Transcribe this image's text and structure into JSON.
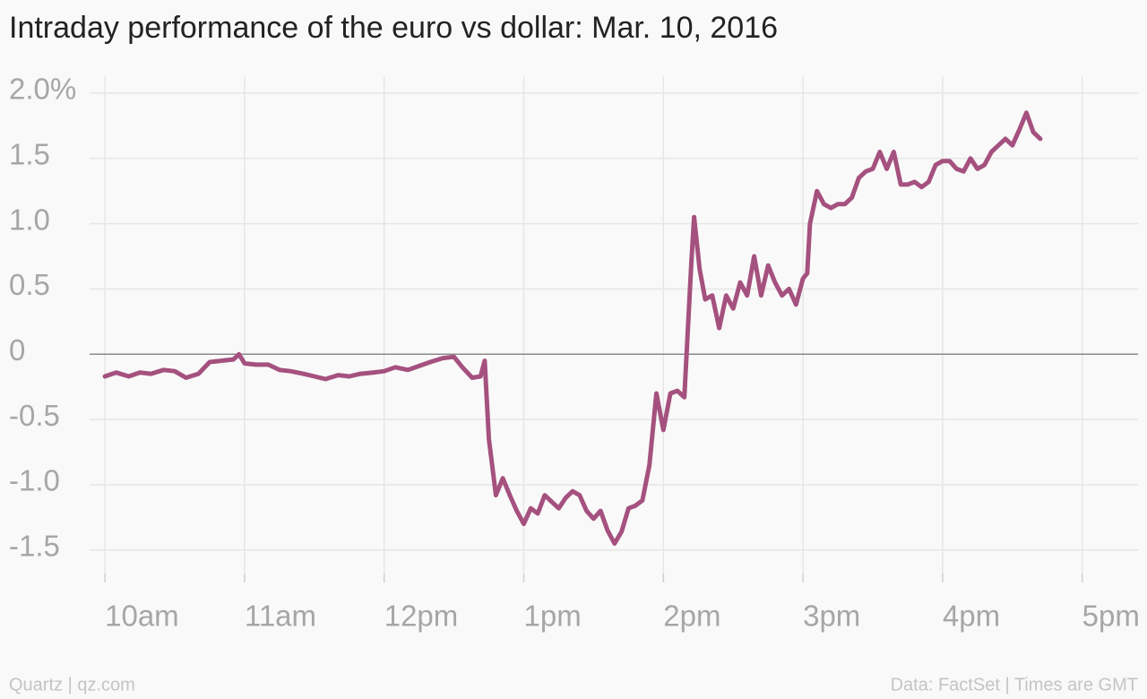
{
  "chart_data": {
    "type": "line",
    "title": "Intraday performance of the euro vs dollar: Mar. 10, 2016",
    "credit": "Quartz | qz.com",
    "source": "Data: FactSet | Times are GMT",
    "color": "#a5517f",
    "x": [
      10.0,
      10.08,
      10.17,
      10.25,
      10.33,
      10.42,
      10.5,
      10.58,
      10.67,
      10.75,
      10.83,
      10.92,
      10.96,
      11.0,
      11.08,
      11.17,
      11.25,
      11.33,
      11.42,
      11.5,
      11.58,
      11.67,
      11.75,
      11.83,
      11.92,
      12.0,
      12.08,
      12.17,
      12.25,
      12.33,
      12.42,
      12.5,
      12.56,
      12.63,
      12.69,
      12.72,
      12.75,
      12.8,
      12.85,
      12.9,
      12.95,
      13.0,
      13.05,
      13.1,
      13.15,
      13.2,
      13.25,
      13.3,
      13.35,
      13.4,
      13.45,
      13.5,
      13.55,
      13.6,
      13.65,
      13.7,
      13.75,
      13.8,
      13.85,
      13.9,
      13.95,
      14.0,
      14.05,
      14.1,
      14.15,
      14.2,
      14.22,
      14.26,
      14.3,
      14.35,
      14.4,
      14.45,
      14.5,
      14.55,
      14.6,
      14.65,
      14.7,
      14.75,
      14.8,
      14.85,
      14.9,
      14.95,
      15.0,
      15.03,
      15.05,
      15.1,
      15.15,
      15.2,
      15.25,
      15.3,
      15.35,
      15.4,
      15.45,
      15.5,
      15.55,
      15.6,
      15.65,
      15.7,
      15.75,
      15.8,
      15.85,
      15.9,
      15.95,
      16.0,
      16.05,
      16.1,
      16.15,
      16.2,
      16.25,
      16.3,
      16.35,
      16.4,
      16.45,
      16.5,
      16.55,
      16.6,
      16.65,
      16.7
    ],
    "values": [
      -0.17,
      -0.14,
      -0.17,
      -0.14,
      -0.15,
      -0.12,
      -0.13,
      -0.18,
      -0.15,
      -0.06,
      -0.05,
      -0.04,
      0.0,
      -0.07,
      -0.08,
      -0.08,
      -0.12,
      -0.13,
      -0.15,
      -0.17,
      -0.19,
      -0.16,
      -0.17,
      -0.15,
      -0.14,
      -0.13,
      -0.1,
      -0.12,
      -0.09,
      -0.06,
      -0.03,
      -0.02,
      -0.1,
      -0.18,
      -0.17,
      -0.05,
      -0.65,
      -1.08,
      -0.95,
      -1.08,
      -1.2,
      -1.3,
      -1.18,
      -1.22,
      -1.08,
      -1.13,
      -1.18,
      -1.1,
      -1.05,
      -1.08,
      -1.2,
      -1.26,
      -1.2,
      -1.35,
      -1.45,
      -1.36,
      -1.18,
      -1.16,
      -1.12,
      -0.85,
      -0.3,
      -0.58,
      -0.3,
      -0.28,
      -0.33,
      0.7,
      1.05,
      0.65,
      0.42,
      0.45,
      0.2,
      0.45,
      0.35,
      0.55,
      0.45,
      0.75,
      0.45,
      0.68,
      0.55,
      0.45,
      0.5,
      0.38,
      0.58,
      0.62,
      1.0,
      1.25,
      1.15,
      1.12,
      1.15,
      1.15,
      1.2,
      1.35,
      1.4,
      1.42,
      1.55,
      1.42,
      1.55,
      1.3,
      1.3,
      1.32,
      1.28,
      1.32,
      1.45,
      1.48,
      1.48,
      1.42,
      1.4,
      1.5,
      1.42,
      1.45,
      1.55,
      1.6,
      1.65,
      1.6,
      1.72,
      1.85,
      1.7,
      1.65
    ],
    "xlim": [
      9.89,
      17.4
    ],
    "xticks": [
      {
        "value": 10,
        "label": "10am"
      },
      {
        "value": 11,
        "label": "11am"
      },
      {
        "value": 12,
        "label": "12pm"
      },
      {
        "value": 13,
        "label": "1pm"
      },
      {
        "value": 14,
        "label": "2pm"
      },
      {
        "value": 15,
        "label": "3pm"
      },
      {
        "value": 16,
        "label": "4pm"
      },
      {
        "value": 17,
        "label": "5pm"
      }
    ],
    "ylim": [
      -1.68,
      2.13
    ],
    "yticks": [
      {
        "value": 2,
        "label": "2.0%"
      },
      1.5,
      {
        "value": 1,
        "label": "1.0"
      },
      0.5,
      0,
      -0.5,
      {
        "value": -1,
        "label": "-1.0"
      },
      -1.5
    ],
    "grid": true
  }
}
